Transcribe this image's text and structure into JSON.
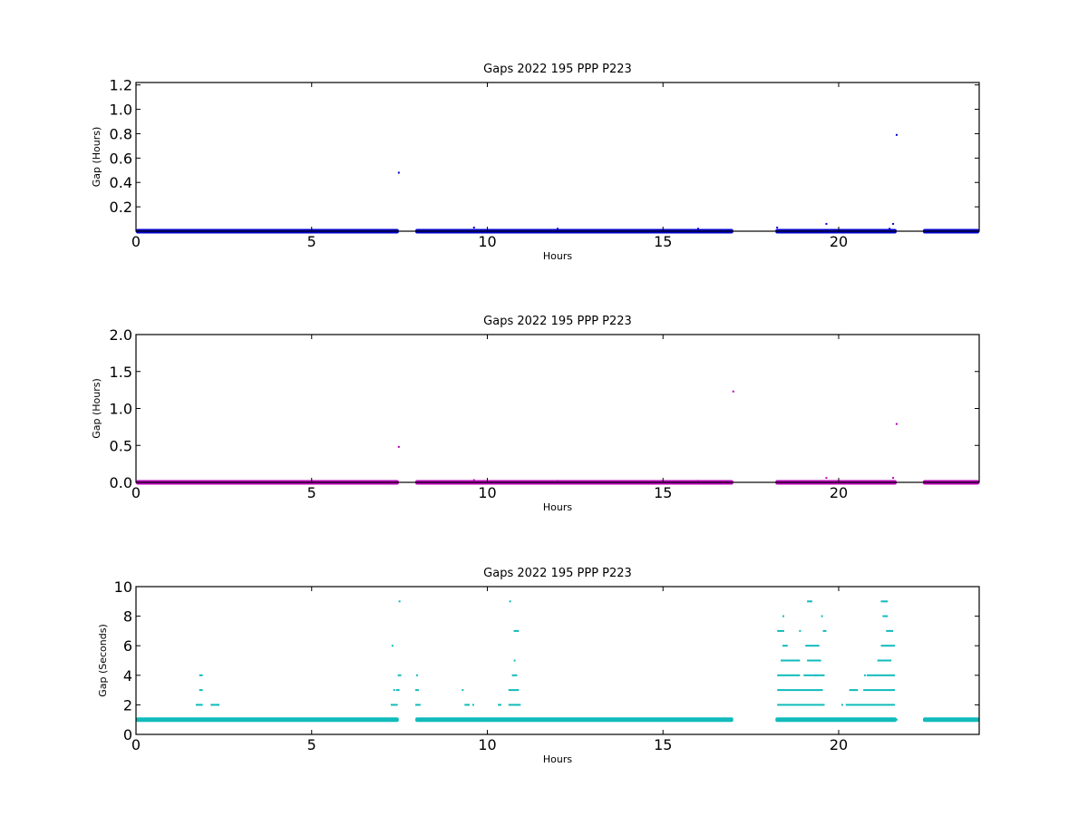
{
  "chart_data": [
    {
      "type": "scatter",
      "title": "Gaps 2022 195 PPP  P223",
      "xlabel": "Hours",
      "ylabel": "Gap (Hours)",
      "xlim": [
        0,
        24
      ],
      "ylim": [
        0,
        1.22
      ],
      "xticks": [
        0,
        5,
        10,
        15,
        20
      ],
      "yticks": [
        0.2,
        0.4,
        0.6,
        0.8,
        1.0,
        1.2
      ],
      "ytick_labels": [
        "0.2",
        "0.4",
        "0.6",
        "0.8",
        "1.0",
        "1.2"
      ],
      "grid": false,
      "color": "#0000cc",
      "series": [
        {
          "baseline_value": 0.0,
          "baseline_ranges": [
            [
              0.0,
              7.48
            ],
            [
              7.95,
              17.0
            ],
            [
              18.2,
              21.65
            ],
            [
              22.4,
              24.0
            ]
          ],
          "points": [
            {
              "x": 7.48,
              "y": 0.48
            },
            {
              "x": 9.62,
              "y": 0.03
            },
            {
              "x": 10.55,
              "y": 0.01
            },
            {
              "x": 11.1,
              "y": 0.01
            },
            {
              "x": 12.0,
              "y": 0.02
            },
            {
              "x": 16.0,
              "y": 0.02
            },
            {
              "x": 18.25,
              "y": 0.03
            },
            {
              "x": 19.65,
              "y": 0.06
            },
            {
              "x": 21.45,
              "y": 0.02
            },
            {
              "x": 21.55,
              "y": 0.06
            },
            {
              "x": 21.65,
              "y": 0.79
            }
          ]
        }
      ]
    },
    {
      "type": "scatter",
      "title": "Gaps 2022 195 PPP  P223",
      "xlabel": "Hours",
      "ylabel": "Gap (Hours)",
      "xlim": [
        0,
        24
      ],
      "ylim": [
        0,
        2.0
      ],
      "xticks": [
        0,
        5,
        10,
        15,
        20
      ],
      "yticks": [
        0.0,
        0.5,
        1.0,
        1.5,
        2.0
      ],
      "ytick_labels": [
        "0.0",
        "0.5",
        "1.0",
        "1.5",
        "2.0"
      ],
      "grid": false,
      "color": "#bb00bb",
      "series": [
        {
          "baseline_value": 0.0,
          "baseline_ranges": [
            [
              0.0,
              7.48
            ],
            [
              7.95,
              17.0
            ],
            [
              18.2,
              21.65
            ],
            [
              22.4,
              24.0
            ]
          ],
          "points": [
            {
              "x": 7.48,
              "y": 0.48
            },
            {
              "x": 9.62,
              "y": 0.03
            },
            {
              "x": 12.0,
              "y": 0.02
            },
            {
              "x": 16.0,
              "y": 0.02
            },
            {
              "x": 17.0,
              "y": 1.23
            },
            {
              "x": 19.65,
              "y": 0.06
            },
            {
              "x": 21.55,
              "y": 0.06
            },
            {
              "x": 21.65,
              "y": 0.79
            }
          ]
        }
      ]
    },
    {
      "type": "scatter",
      "title": "Gaps 2022 195 PPP  P223",
      "xlabel": "Hours",
      "ylabel": "Gap (Seconds)",
      "xlim": [
        0,
        24
      ],
      "ylim": [
        0,
        10
      ],
      "xticks": [
        0,
        5,
        10,
        15,
        20
      ],
      "yticks": [
        0,
        2,
        4,
        6,
        8,
        10
      ],
      "ytick_labels": [
        "0",
        "2",
        "4",
        "6",
        "8",
        "10"
      ],
      "grid": false,
      "color": "#11bbbb",
      "series": [
        {
          "baseline_value": 1,
          "baseline_ranges": [
            [
              0.0,
              7.48
            ],
            [
              7.95,
              17.0
            ],
            [
              18.2,
              21.65
            ],
            [
              22.4,
              24.0
            ]
          ],
          "segments": [
            {
              "y": 2,
              "x0": 1.7,
              "x1": 1.9
            },
            {
              "y": 2,
              "x0": 2.15,
              "x1": 2.35
            },
            {
              "y": 2,
              "x0": 7.25,
              "x1": 7.45
            },
            {
              "y": 2,
              "x0": 7.95,
              "x1": 8.1
            },
            {
              "y": 2,
              "x0": 9.35,
              "x1": 9.5
            },
            {
              "y": 2,
              "x0": 10.3,
              "x1": 10.4
            },
            {
              "y": 2,
              "x0": 10.6,
              "x1": 10.95
            },
            {
              "y": 2,
              "x0": 18.25,
              "x1": 19.6
            },
            {
              "y": 2,
              "x0": 20.2,
              "x1": 21.6
            },
            {
              "y": 3,
              "x0": 1.8,
              "x1": 1.9
            },
            {
              "y": 3,
              "x0": 7.4,
              "x1": 7.5
            },
            {
              "y": 3,
              "x0": 7.95,
              "x1": 8.05
            },
            {
              "y": 3,
              "x0": 10.6,
              "x1": 10.9
            },
            {
              "y": 3,
              "x0": 18.25,
              "x1": 19.55
            },
            {
              "y": 3,
              "x0": 20.3,
              "x1": 20.55
            },
            {
              "y": 3,
              "x0": 20.7,
              "x1": 21.6
            },
            {
              "y": 4,
              "x0": 1.8,
              "x1": 1.9
            },
            {
              "y": 4,
              "x0": 7.45,
              "x1": 7.55
            },
            {
              "y": 4,
              "x0": 10.7,
              "x1": 10.85
            },
            {
              "y": 4,
              "x0": 18.25,
              "x1": 18.9
            },
            {
              "y": 4,
              "x0": 19.0,
              "x1": 19.6
            },
            {
              "y": 4,
              "x0": 20.8,
              "x1": 21.6
            },
            {
              "y": 5,
              "x0": 10.75,
              "x1": 10.8
            },
            {
              "y": 5,
              "x0": 18.35,
              "x1": 18.9
            },
            {
              "y": 5,
              "x0": 19.1,
              "x1": 19.5
            },
            {
              "y": 5,
              "x0": 21.1,
              "x1": 21.5
            },
            {
              "y": 6,
              "x0": 18.4,
              "x1": 18.55
            },
            {
              "y": 6,
              "x0": 19.05,
              "x1": 19.45
            },
            {
              "y": 6,
              "x0": 21.2,
              "x1": 21.6
            },
            {
              "y": 7,
              "x0": 10.75,
              "x1": 10.9
            },
            {
              "y": 7,
              "x0": 18.25,
              "x1": 18.45
            },
            {
              "y": 7,
              "x0": 19.55,
              "x1": 19.65
            },
            {
              "y": 7,
              "x0": 21.35,
              "x1": 21.55
            },
            {
              "y": 8,
              "x0": 18.4,
              "x1": 18.45
            },
            {
              "y": 8,
              "x0": 19.5,
              "x1": 19.55
            },
            {
              "y": 8,
              "x0": 21.25,
              "x1": 21.4
            },
            {
              "y": 9,
              "x0": 19.1,
              "x1": 19.25
            },
            {
              "y": 9,
              "x0": 21.2,
              "x1": 21.4
            }
          ],
          "points": [
            {
              "x": 2.15,
              "y": 2
            },
            {
              "x": 2.35,
              "y": 2
            },
            {
              "x": 7.3,
              "y": 6
            },
            {
              "x": 7.35,
              "y": 3
            },
            {
              "x": 7.5,
              "y": 9
            },
            {
              "x": 8.0,
              "y": 4
            },
            {
              "x": 9.3,
              "y": 3
            },
            {
              "x": 9.6,
              "y": 2
            },
            {
              "x": 10.65,
              "y": 9
            },
            {
              "x": 18.9,
              "y": 7
            },
            {
              "x": 18.7,
              "y": 5
            },
            {
              "x": 19.35,
              "y": 4
            },
            {
              "x": 20.1,
              "y": 2
            },
            {
              "x": 20.75,
              "y": 4
            },
            {
              "x": 21.65,
              "y": 1
            }
          ]
        }
      ]
    }
  ]
}
